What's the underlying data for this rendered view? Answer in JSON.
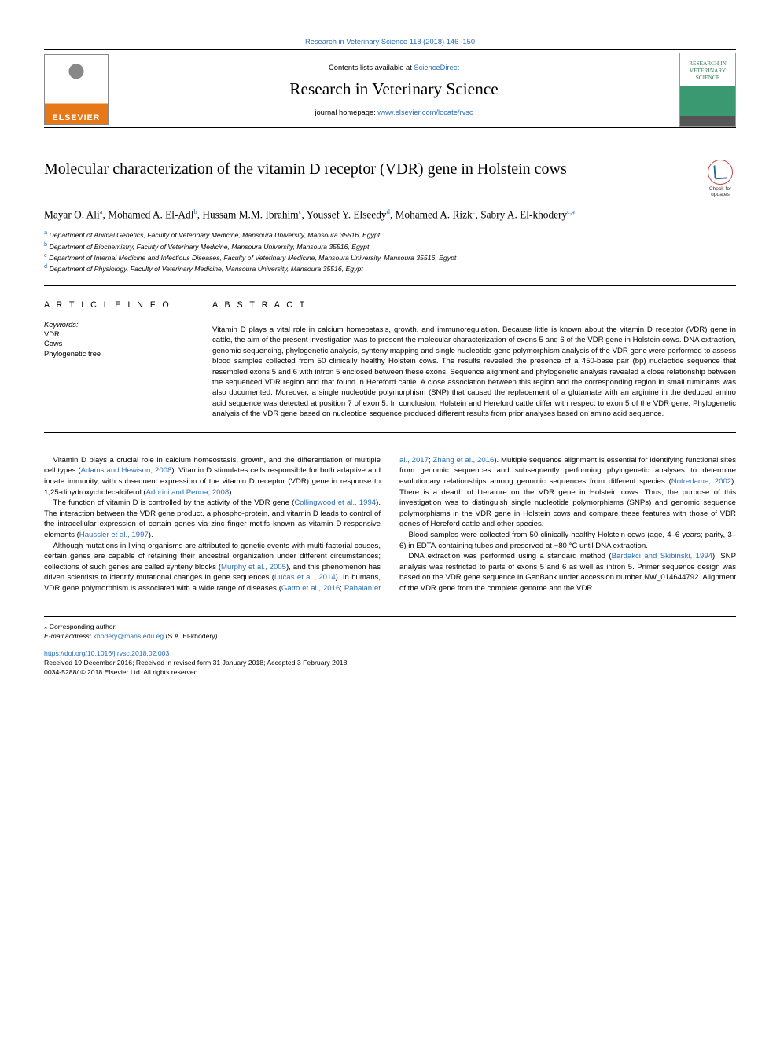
{
  "header": {
    "top_link": "Research in Veterinary Science 118 (2018) 146–150",
    "contents_prefix": "Contents lists available at ",
    "contents_link": "ScienceDirect",
    "journal": "Research in Veterinary Science",
    "homepage_label": "journal homepage: ",
    "homepage_url": "www.elsevier.com/locate/rvsc",
    "elsevier": "ELSEVIER",
    "cover_text": "RESEARCH IN VETERINARY SCIENCE",
    "badge_text": "Check for updates"
  },
  "title": "Molecular characterization of the vitamin D receptor (VDR) gene in Holstein cows",
  "authors": [
    {
      "name": "Mayar O. Ali",
      "aff": "a"
    },
    {
      "name": "Mohamed A. El-Adl",
      "aff": "b"
    },
    {
      "name": "Hussam M.M. Ibrahim",
      "aff": "c"
    },
    {
      "name": "Youssef Y. Elseedy",
      "aff": "d"
    },
    {
      "name": "Mohamed A. Rizk",
      "aff": "c"
    },
    {
      "name": "Sabry A. El-khodery",
      "aff": "c",
      "corr": true
    }
  ],
  "affiliations": {
    "a": "Department of Animal Genetics, Faculty of Veterinary Medicine, Mansoura University, Mansoura 35516, Egypt",
    "b": "Department of Biochemistry, Faculty of Veterinary Medicine, Mansoura University, Mansoura 35516, Egypt",
    "c": "Department of Internal Medicine and Infectious Diseases, Faculty of Veterinary Medicine, Mansoura University, Mansoura 35516, Egypt",
    "d": "Department of Physiology, Faculty of Veterinary Medicine, Mansoura University, Mansoura 35516, Egypt"
  },
  "article_info": {
    "head": "A R T I C L E  I N F O",
    "kw_label": "Keywords:",
    "keywords": [
      "VDR",
      "Cows",
      "Phylogenetic tree"
    ]
  },
  "abstract": {
    "head": "A B S T R A C T",
    "text": "Vitamin D plays a vital role in calcium homeostasis, growth, and immunoregulation. Because little is known about the vitamin D receptor (VDR) gene in cattle, the aim of the present investigation was to present the molecular characterization of exons 5 and 6 of the VDR gene in Holstein cows. DNA extraction, genomic sequencing, phylogenetic analysis, synteny mapping and single nucleotide gene polymorphism analysis of the VDR gene were performed to assess blood samples collected from 50 clinically healthy Holstein cows. The results revealed the presence of a 450-base pair (bp) nucleotide sequence that resembled exons 5 and 6 with intron 5 enclosed between these exons. Sequence alignment and phylogenetic analysis revealed a close relationship between the sequenced VDR region and that found in Hereford cattle. A close association between this region and the corresponding region in small ruminants was also documented. Moreover, a single nucleotide polymorphism (SNP) that caused the replacement of a glutamate with an arginine in the deduced amino acid sequence was detected at position 7 of exon 5. In conclusion, Holstein and Hereford cattle differ with respect to exon 5 of the VDR gene. Phylogenetic analysis of the VDR gene based on nucleotide sequence produced different results from prior analyses based on amino acid sequence."
  },
  "body": {
    "p1a": "Vitamin D plays a crucial role in calcium homeostasis, growth, and the differentiation of multiple cell types (",
    "c1": "Adams and Hewison, 2008",
    "p1b": "). Vitamin D stimulates cells responsible for both adaptive and innate immunity, with subsequent expression of the vitamin D receptor (VDR) gene in response to 1,25-dihydroxycholecalciferol (",
    "c2": "Adorini and Penna, 2008",
    "p1c": ").",
    "p2a": "The function of vitamin D is controlled by the activity of the VDR gene (",
    "c3": "Collingwood et al., 1994",
    "p2b": "). The interaction between the VDR gene product, a phospho-protein, and vitamin D leads to control of the intracellular expression of certain genes via zinc finger motifs known as vitamin D-responsive elements (",
    "c4": "Haussler et al., 1997",
    "p2c": ").",
    "p3a": "Although mutations in living organisms are attributed to genetic events with multi-factorial causes, certain genes are capable of retaining their ancestral organization under different circumstances; collections of such genes are called synteny blocks (",
    "c5": "Murphy et al., 2005",
    "p3b": "), and this phenomenon has driven scientists to identify mutational changes in gene sequences (",
    "c6": "Lucas et al., 2014",
    "p3c": "). In humans, VDR gene polymorphism is associated with a wide range of diseases (",
    "c7": "Gatto et al., 2016",
    "p3d": "; ",
    "c8": "Pabalan et al., 2017",
    "p3e": "; ",
    "c9": "Zhang et al., 2016",
    "p3f": "). Multiple sequence alignment is essential for identifying functional sites from genomic sequences and subsequently performing phylogenetic analyses to determine evolutionary relationships among genomic sequences from different species (",
    "c10": "Notredame, 2002",
    "p3g": "). There is a dearth of literature on the VDR gene in Holstein cows. Thus, the purpose of this investigation was to distinguish single nucleotide polymorphisms (SNPs) and genomic sequence polymorphisms in the VDR gene in Holstein cows and compare these features with those of VDR genes of Hereford cattle and other species.",
    "p4": "Blood samples were collected from 50 clinically healthy Holstein cows (age, 4–6 years; parity, 3–6) in EDTA-containing tubes and preserved at −80 °C until DNA extraction.",
    "p5a": "DNA extraction was performed using a standard method (",
    "c11": "Bardakci and Skibinski, 1994",
    "p5b": "). SNP analysis was restricted to parts of exons 5 and 6 as well as intron 5. Primer sequence design was based on the VDR gene sequence in GenBank under accession number NW_014644792. Alignment of the VDR gene from the complete genome and the VDR"
  },
  "footer": {
    "corr": "⁎ Corresponding author.",
    "email_label": "E-mail address: ",
    "email": "khodery@mans.edu.eg",
    "email_suffix": " (S.A. El-khodery).",
    "doi": "https://doi.org/10.1016/j.rvsc.2018.02.003",
    "dates": "Received 19 December 2016; Received in revised form 31 January 2018; Accepted 3 February 2018",
    "copyright": "0034-5288/ © 2018 Elsevier Ltd. All rights reserved."
  },
  "colors": {
    "link": "#2a6eb5",
    "elsevier_orange": "#e67817"
  }
}
